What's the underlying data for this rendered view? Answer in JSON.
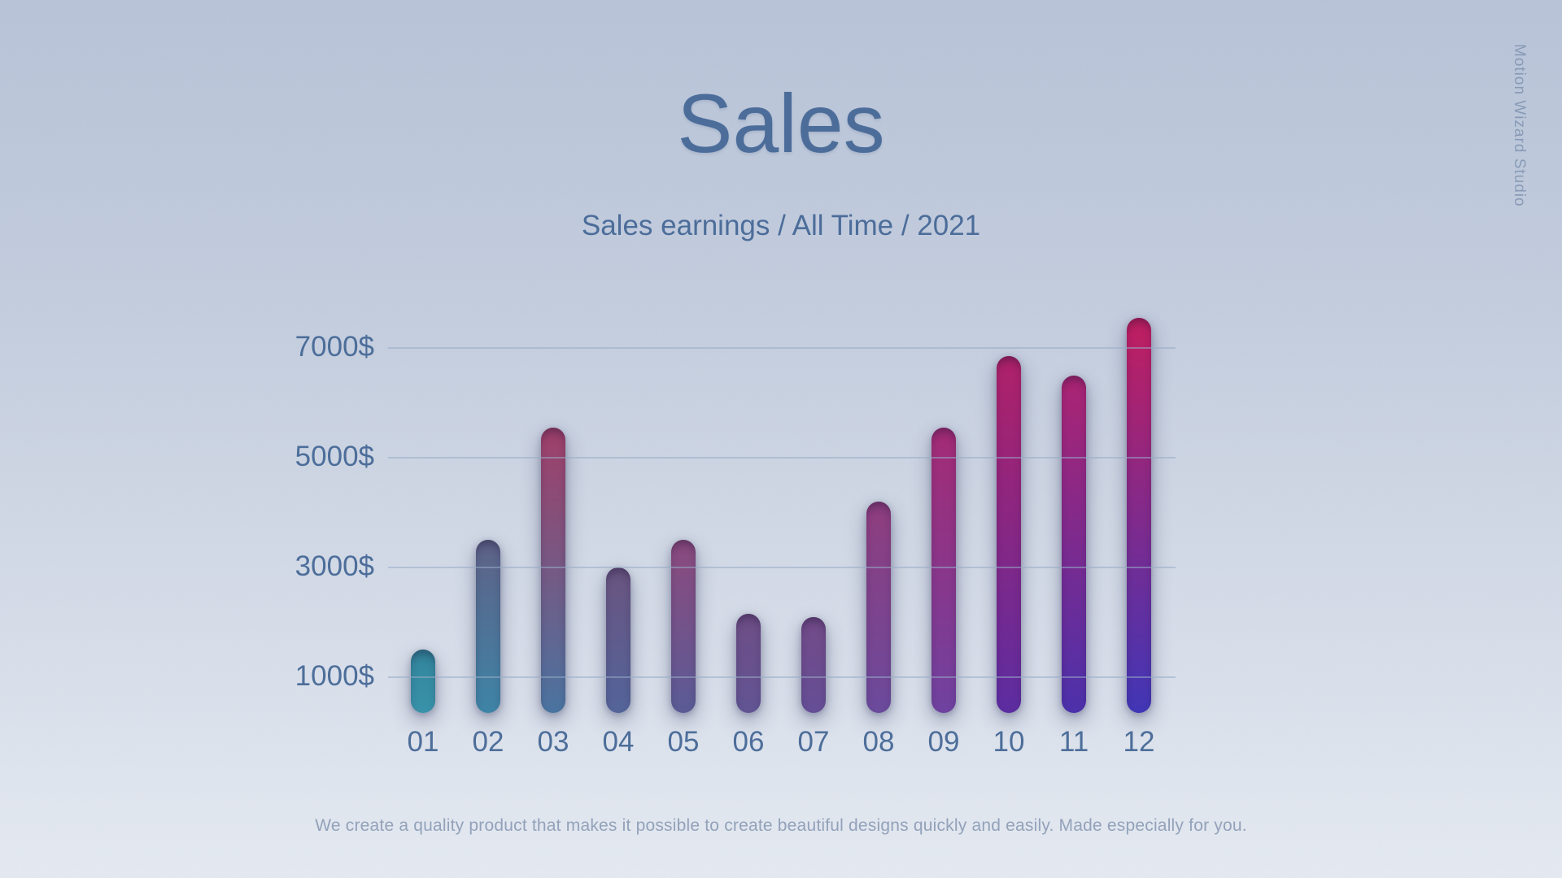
{
  "page": {
    "title": "Sales",
    "subtitle": "Sales earnings / All Time / 2021",
    "footer_note": "We create a quality product that makes it possible to create beautiful designs quickly and easily. Made especially for you.",
    "watermark": "Motion Wizard Studio"
  },
  "colors": {
    "background_top": "#b7c3d8",
    "background_bottom": "#e5eaf2",
    "heading": "#4c6d9a",
    "axis_text": "#4d6e9a",
    "gridline": "#97abc7",
    "footer_text": "#93a2ba",
    "watermark_text": "#8093b0"
  },
  "chart_data": {
    "type": "bar",
    "title": "Sales",
    "subtitle": "Sales earnings / All Time / 2021",
    "categories": [
      "01",
      "02",
      "03",
      "04",
      "05",
      "06",
      "07",
      "08",
      "09",
      "10",
      "11",
      "12"
    ],
    "values": [
      1500,
      3500,
      5550,
      3000,
      3500,
      2150,
      2100,
      4200,
      5550,
      6850,
      6500,
      7550
    ],
    "unit": "$",
    "xlabel": "",
    "ylabel": "",
    "ylim": [
      0,
      8000
    ],
    "yticks": [
      {
        "value": 1000,
        "label": "1000$"
      },
      {
        "value": 3000,
        "label": "3000$"
      },
      {
        "value": 5000,
        "label": "5000$"
      },
      {
        "value": 7000,
        "label": "7000$"
      }
    ],
    "grid": "horizontal translucent lines drawn over bars",
    "legend_position": "none",
    "bar_style": "rounded capsule with drop shadow",
    "bar_colors": [
      {
        "top": "#32859c",
        "bottom": "#3992a9"
      },
      {
        "top": "#5f6187",
        "bottom": "#3e84a6"
      },
      {
        "top": "#a03f69",
        "bottom": "#4a74a0"
      },
      {
        "top": "#6a5480",
        "bottom": "#53649a"
      },
      {
        "top": "#8c4a7e",
        "bottom": "#5a5b96"
      },
      {
        "top": "#6f4e86",
        "bottom": "#615493"
      },
      {
        "top": "#734b88",
        "bottom": "#654e96"
      },
      {
        "top": "#8f3d7e",
        "bottom": "#6b4a9c"
      },
      {
        "top": "#a42b75",
        "bottom": "#6f42a0"
      },
      {
        "top": "#b02168",
        "bottom": "#5c2da1"
      },
      {
        "top": "#ac2472",
        "bottom": "#4c31ab"
      },
      {
        "top": "#c11e60",
        "bottom": "#4136b6"
      }
    ]
  }
}
